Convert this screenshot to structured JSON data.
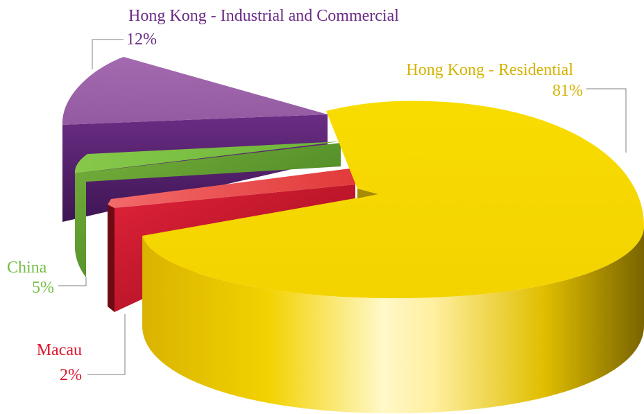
{
  "chart_data": {
    "type": "pie",
    "style": "3d-exploded",
    "slices": [
      {
        "name": "Hong Kong - Residential",
        "value": 81,
        "label": "81%",
        "color": "#F5D800",
        "text_color": "#D4B200"
      },
      {
        "name": "Hong Kong - Industrial and Commercial",
        "value": 12,
        "label": "12%",
        "color": "#9B63A8",
        "text_color": "#6A2B85"
      },
      {
        "name": "China",
        "value": 5,
        "label": "5%",
        "color": "#7CC043",
        "text_color": "#74BE45"
      },
      {
        "name": "Macau",
        "value": 2,
        "label": "2%",
        "color": "#E22035",
        "text_color": "#D9182E"
      }
    ]
  }
}
